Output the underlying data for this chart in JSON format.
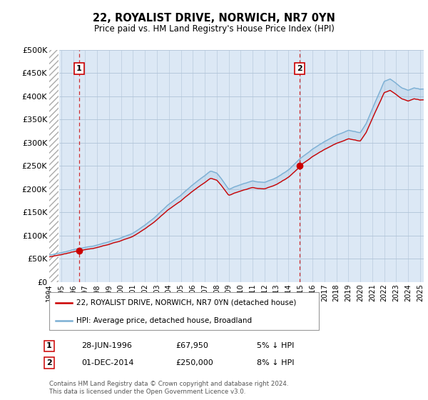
{
  "title": "22, ROYALIST DRIVE, NORWICH, NR7 0YN",
  "subtitle": "Price paid vs. HM Land Registry's House Price Index (HPI)",
  "ylim": [
    0,
    500000
  ],
  "yticks": [
    0,
    50000,
    100000,
    150000,
    200000,
    250000,
    300000,
    350000,
    400000,
    450000,
    500000
  ],
  "ytick_labels": [
    "£0",
    "£50K",
    "£100K",
    "£150K",
    "£200K",
    "£250K",
    "£300K",
    "£350K",
    "£400K",
    "£450K",
    "£500K"
  ],
  "sale1_date": 1996.49,
  "sale1_price": 67950,
  "sale2_date": 2014.92,
  "sale2_price": 250000,
  "hpi_line_color": "#7bafd4",
  "price_line_color": "#cc0000",
  "dashed_line_color": "#cc0000",
  "background_fill": "#dce8f5",
  "grid_color": "#b0c4d8",
  "legend_label1": "22, ROYALIST DRIVE, NORWICH, NR7 0YN (detached house)",
  "legend_label2": "HPI: Average price, detached house, Broadland",
  "footnote": "Contains HM Land Registry data © Crown copyright and database right 2024.\nThis data is licensed under the Open Government Licence v3.0.",
  "xmin": 1994.0,
  "xmax": 2025.3,
  "hpi_anchors_x": [
    1994,
    1995,
    1996,
    1997,
    1998,
    1999,
    2000,
    2001,
    2002,
    2003,
    2004,
    2005,
    2006,
    2007,
    2007.5,
    2008,
    2008.5,
    2009,
    2009.5,
    2010,
    2011,
    2012,
    2013,
    2014,
    2015,
    2016,
    2017,
    2018,
    2019,
    2020,
    2020.5,
    2021,
    2021.5,
    2022,
    2022.5,
    2023,
    2023.5,
    2024,
    2024.5,
    2025
  ],
  "hpi_anchors_v": [
    58000,
    62000,
    68000,
    74000,
    80000,
    87000,
    96000,
    106000,
    122000,
    143000,
    168000,
    188000,
    210000,
    230000,
    240000,
    235000,
    218000,
    200000,
    205000,
    210000,
    218000,
    215000,
    225000,
    243000,
    268000,
    288000,
    305000,
    320000,
    330000,
    325000,
    345000,
    375000,
    405000,
    435000,
    440000,
    430000,
    420000,
    415000,
    420000,
    418000
  ]
}
